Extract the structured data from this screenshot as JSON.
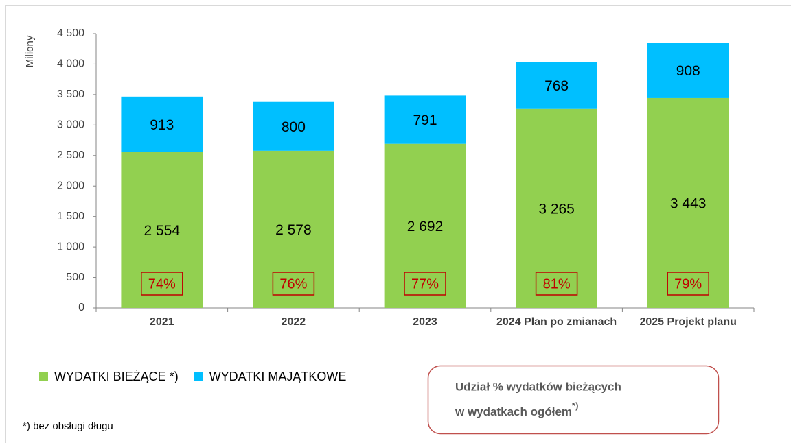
{
  "chart_data": {
    "type": "stacked_bar",
    "y_label": "Miliony",
    "categories": [
      "2021",
      "2022",
      "2023",
      "2024 Plan po zmianach",
      "2025 Projekt planu"
    ],
    "series": [
      {
        "name": "WYDATKI BIEŻĄCE *)",
        "color": "#92d050",
        "values": [
          2554,
          2578,
          2692,
          3265,
          3443
        ],
        "value_labels": [
          "2 554",
          "2 578",
          "2 692",
          "3 265",
          "3 443"
        ]
      },
      {
        "name": "WYDATKI MAJĄTKOWE",
        "color": "#00bfff",
        "values": [
          913,
          800,
          791,
          768,
          908
        ]
      }
    ],
    "shares": {
      "color": "#c00000",
      "values": [
        74,
        76,
        77,
        81,
        79
      ],
      "value_labels": [
        "74%",
        "76%",
        "77%",
        "81%",
        "79%"
      ]
    },
    "ylim": [
      0,
      4500
    ],
    "yticks": [
      0,
      500,
      {
        "value": 1000,
        "label": "1 000"
      },
      {
        "value": 1500,
        "label": "1 500"
      },
      {
        "value": 2000,
        "label": "2 000"
      },
      {
        "value": 2500,
        "label": "2 500"
      },
      {
        "value": 3000,
        "label": "3 000"
      },
      {
        "value": 3500,
        "label": "3 500"
      },
      {
        "value": 4000,
        "label": "4 000"
      },
      {
        "value": 4500,
        "label": "4 500"
      }
    ],
    "grid": false,
    "legend": "bottom-left",
    "annotation": {
      "lines": [
        "Udział % wydatków bieżących",
        "w wydatkach ogółem"
      ],
      "superscript": "*)"
    },
    "footnote": "*) bez obsługi długu"
  }
}
